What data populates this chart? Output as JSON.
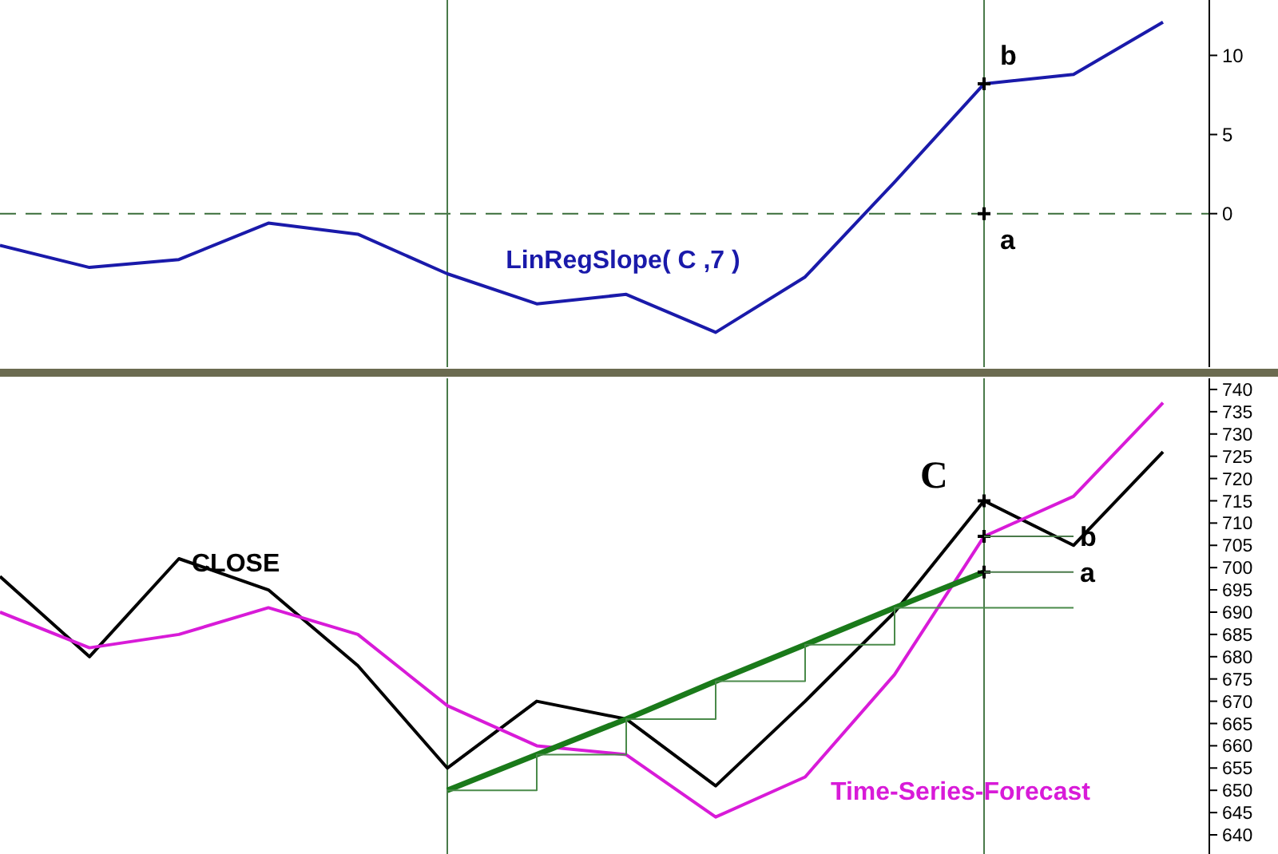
{
  "chart_data": [
    {
      "type": "line",
      "categories": [
        null,
        null,
        null,
        null,
        null,
        null,
        null,
        null,
        null,
        null,
        null,
        null,
        null,
        null
      ],
      "series": [
        {
          "name": "LinRegSlope( C ,7 )",
          "color": "#1a1aaa",
          "values": [
            -2.0,
            -3.4,
            -2.9,
            -0.6,
            -1.3,
            -3.8,
            -5.7,
            -5.1,
            -7.5,
            -4.0,
            2.0,
            8.2,
            8.8,
            12.1
          ]
        }
      ],
      "ylim": [
        -9.7,
        13.5
      ],
      "yticks": [
        0,
        5,
        10
      ],
      "ref_lines": [
        {
          "axis": "y",
          "value": 0,
          "color": "#3a6e3a",
          "line_style": "dashed"
        }
      ],
      "annotations": [
        "b",
        "a"
      ]
    },
    {
      "type": "line",
      "categories": [
        null,
        null,
        null,
        null,
        null,
        null,
        null,
        null,
        null,
        null,
        null,
        null,
        null,
        null
      ],
      "series": [
        {
          "name": "CLOSE",
          "color": "#000000",
          "values": [
            698,
            680,
            702,
            695,
            678,
            655,
            670,
            666,
            651,
            670,
            690,
            715,
            705,
            726
          ]
        },
        {
          "name": "Time-Series-Forecast",
          "color": "#d81bd8",
          "values": [
            690,
            682,
            685,
            691,
            685,
            669,
            660,
            658,
            644,
            653,
            676,
            707,
            716,
            737
          ]
        },
        {
          "color": "#1a7a1a",
          "values": [
            null,
            null,
            null,
            null,
            null,
            650,
            658,
            666,
            674.5,
            682.7,
            691,
            699,
            null,
            null
          ]
        },
        {
          "type": "step",
          "color": "#4a8a4a",
          "values": [
            null,
            null,
            null,
            null,
            null,
            650,
            658,
            666,
            674.5,
            682.7,
            691,
            691,
            691,
            null
          ]
        }
      ],
      "ylim": [
        635.7,
        742.5
      ],
      "yticks": [
        640,
        645,
        650,
        655,
        660,
        665,
        670,
        675,
        680,
        685,
        690,
        695,
        700,
        705,
        710,
        715,
        720,
        725,
        730,
        735,
        740
      ],
      "annotations": [
        "C",
        "b",
        "a"
      ]
    }
  ]
}
